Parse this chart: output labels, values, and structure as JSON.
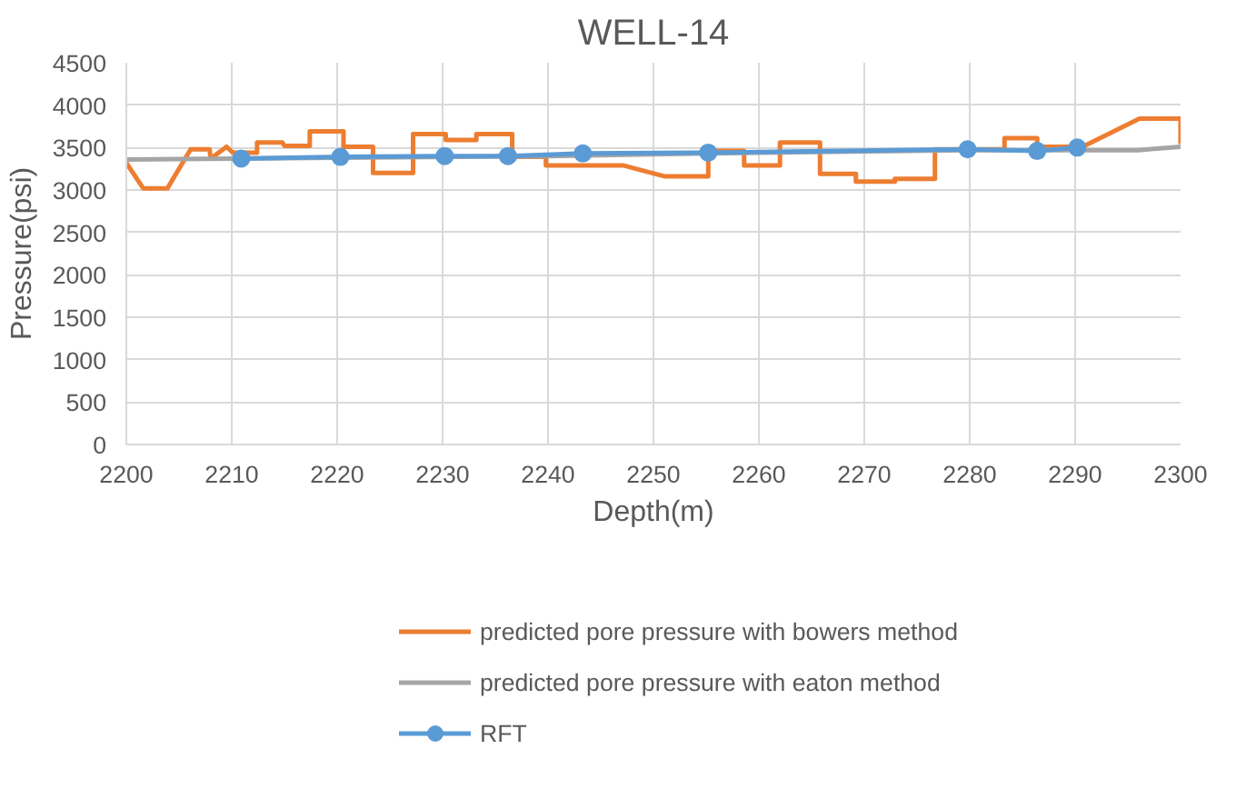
{
  "chart_data": {
    "type": "line",
    "title": "WELL-14",
    "xlabel": "Depth(m)",
    "ylabel": "Pressure(psi)",
    "xlim": [
      2200,
      2300
    ],
    "xticks": [
      2200,
      2210,
      2220,
      2230,
      2240,
      2250,
      2260,
      2270,
      2280,
      2290,
      2300
    ],
    "ylim": [
      0,
      4500
    ],
    "yticks": [
      0,
      500,
      1000,
      1500,
      2000,
      2500,
      3000,
      3500,
      4000,
      4500
    ],
    "grid": true,
    "legend": "bottom",
    "marker": "none",
    "line_style": "solid",
    "series": [
      {
        "name": "predicted pore pressure with bowers method",
        "color": "#ed7d31",
        "x": [
          2200,
          2201.6,
          2203.9,
          2206.1,
          2207.9,
          2208,
          2209.5,
          2210.1,
          2212.4,
          2212.4,
          2214.8,
          2215,
          2217.4,
          2217.4,
          2220.6,
          2220.6,
          2223.4,
          2223.4,
          2227.2,
          2227.2,
          2230.3,
          2230.3,
          2233.2,
          2233.2,
          2236.6,
          2236.6,
          2239.8,
          2239.8,
          2247.1,
          2251.1,
          2255.2,
          2255.2,
          2258.6,
          2258.6,
          2262,
          2262,
          2265.8,
          2265.8,
          2269.2,
          2269.2,
          2272.9,
          2272.9,
          2276.7,
          2276.7,
          2283.3,
          2283.3,
          2286.4,
          2286.4,
          2290.7,
          2296.1,
          2300,
          2300
        ],
        "values": [
          3320,
          3020,
          3020,
          3480,
          3480,
          3370,
          3510,
          3440,
          3440,
          3560,
          3560,
          3520,
          3520,
          3690,
          3690,
          3510,
          3510,
          3200,
          3200,
          3660,
          3660,
          3590,
          3590,
          3660,
          3660,
          3390,
          3390,
          3290,
          3290,
          3160,
          3160,
          3460,
          3460,
          3290,
          3290,
          3560,
          3560,
          3190,
          3190,
          3100,
          3100,
          3130,
          3130,
          3480,
          3480,
          3610,
          3610,
          3510,
          3510,
          3840,
          3840,
          3540
        ]
      },
      {
        "name": "predicted pore pressure with eaton method",
        "color": "#a5a5a5",
        "x": [
          2200,
          2220,
          2240,
          2260,
          2280,
          2296,
          2300
        ],
        "values": [
          3360,
          3380,
          3400,
          3440,
          3470,
          3470,
          3510
        ]
      },
      {
        "name": "RFT",
        "color": "#5b9bd5",
        "marker": "circle",
        "x": [
          2210.9,
          2220.3,
          2230.2,
          2236.2,
          2243.3,
          2255.2,
          2279.8,
          2286.4,
          2290.2
        ],
        "values": [
          3370,
          3390,
          3400,
          3400,
          3430,
          3440,
          3480,
          3460,
          3500
        ]
      }
    ]
  }
}
